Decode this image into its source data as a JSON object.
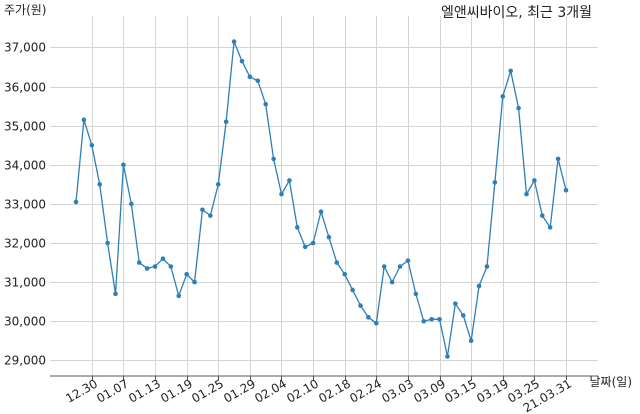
{
  "chart_data": {
    "type": "line",
    "title": "엘앤씨바이오, 최근 3개월",
    "ylabel": "주가(원)",
    "xlabel": "날짜(일)",
    "ylim": [
      28600,
      37600
    ],
    "yticks": [
      29000,
      30000,
      31000,
      32000,
      33000,
      34000,
      35000,
      36000,
      37000
    ],
    "ytick_labels": [
      "29,000",
      "30,000",
      "31,000",
      "32,000",
      "33,000",
      "34,000",
      "35,000",
      "36,000",
      "37,000"
    ],
    "xticks": [
      {
        "label": "12.30",
        "index": 2
      },
      {
        "label": "01.07",
        "index": 6
      },
      {
        "label": "01.13",
        "index": 10
      },
      {
        "label": "01.19",
        "index": 14
      },
      {
        "label": "01.25",
        "index": 18
      },
      {
        "label": "01.29",
        "index": 22
      },
      {
        "label": "02.04",
        "index": 26
      },
      {
        "label": "02.10",
        "index": 30
      },
      {
        "label": "02.18",
        "index": 34
      },
      {
        "label": "02.24",
        "index": 38
      },
      {
        "label": "03.03",
        "index": 42
      },
      {
        "label": "03.09",
        "index": 46
      },
      {
        "label": "03.15",
        "index": 50
      },
      {
        "label": "03.19",
        "index": 54
      },
      {
        "label": "03.25",
        "index": 58
      },
      {
        "label": "21.03.31",
        "index": 62
      }
    ],
    "grid": true,
    "line_color": "#2e7fb8",
    "series": [
      {
        "values": [
          33050,
          35150,
          34500,
          33500,
          32000,
          30700,
          34000,
          33000,
          31500,
          31350,
          31400,
          31600,
          31400,
          30650,
          31200,
          31000,
          32850,
          32700,
          33500,
          35100,
          37150,
          36650,
          36250,
          36150,
          35550,
          34150,
          33250,
          33600,
          32400,
          31900,
          32000,
          32800,
          32150,
          31500,
          31200,
          30800,
          30400,
          30100,
          29950,
          31400,
          31000,
          31400,
          31550,
          30700,
          30000,
          30050,
          30050,
          29100,
          30450,
          30150,
          29500,
          30900,
          31400,
          33550,
          35750,
          36400,
          35450,
          33250,
          33600,
          32700,
          32400,
          34150,
          33350
        ]
      }
    ]
  }
}
